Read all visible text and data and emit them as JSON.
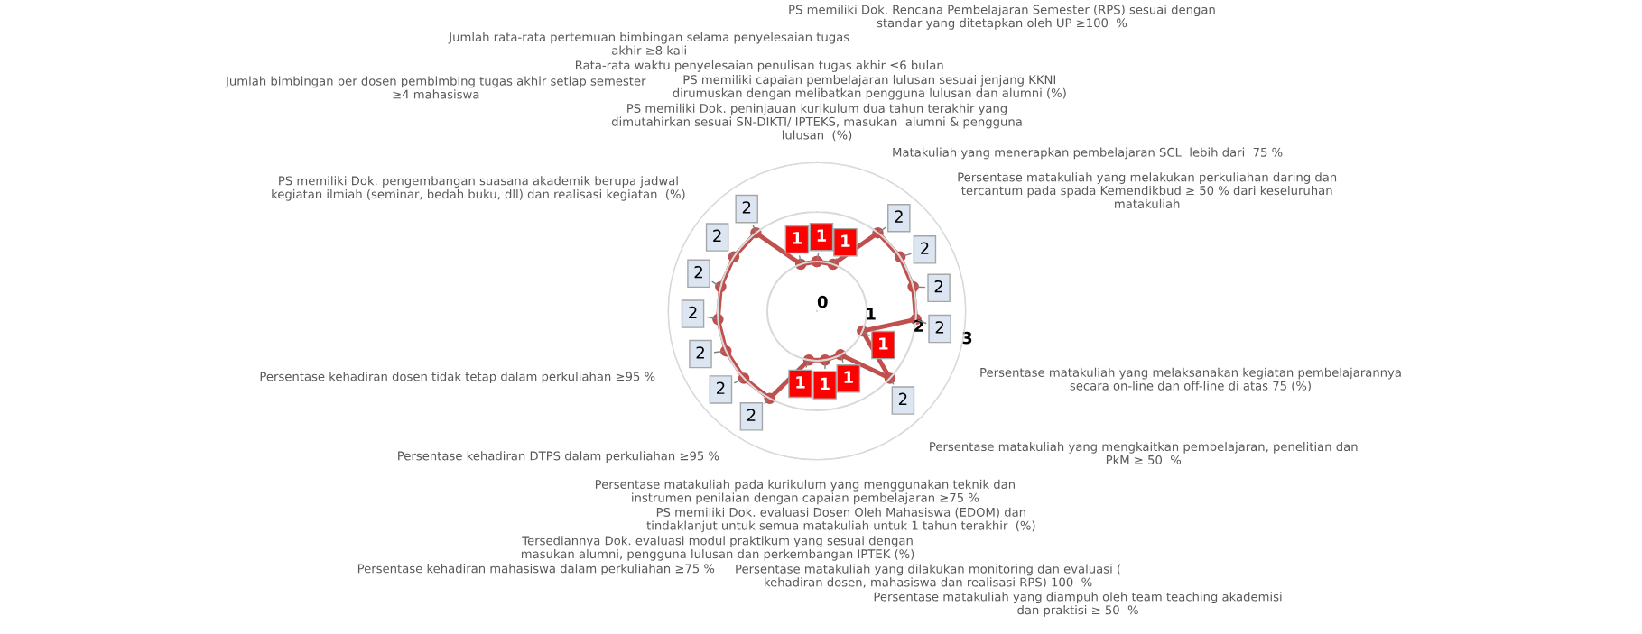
{
  "chart_data": {
    "type": "radar",
    "categories": [
      "PS memiliki Dok. peninjauan kurikulum dua tahun terakhir yang\ndimutahirkan sesuai SN-DIKTI/ IPTEKS, masukan  alumni & pengguna\nlulusan  (%)",
      "PS memiliki capaian pembelajaran lulusan sesuai jenjang KKNI\ndirumuskan dengan melibatkan pengguna lulusan dan alumni (%)",
      "PS memiliki Dok. Rencana Pembelajaran Semester (RPS) sesuai dengan\nstandar yang ditetapkan oleh UP ≥100  %",
      "Matakuliah yang menerapkan pembelajaran SCL  lebih dari  75 %",
      "Persentase matakuliah yang melakukan perkuliahan daring dan\ntercantum pada spada Kemendikbud ≥ 50 % dari keseluruhan\nmatakuliah",
      "Persentase matakuliah yang melaksanakan kegiatan pembelajarannya\nsecara on-line dan off-line di atas 75 (%)",
      "Persentase matakuliah yang mengkaitkan pembelajaran, penelitian dan\nPkM ≥ 50  %",
      "Persentase matakuliah yang diampuh oleh team teaching akademisi\ndan praktisi ≥ 50  %",
      "Persentase matakuliah yang dilakukan monitoring dan evaluasi (\nkehadiran dosen, mahasiswa dan realisasi RPS) 100  %",
      "PS memiliki Dok. evaluasi Dosen Oleh Mahasiswa (EDOM) dan\ntindaklanjut untuk semua matakuliah untuk 1 tahun terakhir  (%)",
      "Persentase matakuliah pada kurikulum yang menggunakan teknik dan\ninstrumen penilaian dengan capaian pembelajaran ≥75 %",
      "Tersediannya Dok. evaluasi modul praktikum yang sesuai dengan\nmasukan alumni, pengguna lulusan dan perkembangan IPTEK (%)",
      "Persentase kehadiran mahasiswa dalam perkuliahan ≥75 %",
      "Persentase kehadiran DTPS dalam perkuliahan ≥95 %",
      "Persentase kehadiran dosen tidak tetap dalam perkuliahan ≥95 %",
      "PS memiliki Dok. pengembangan suasana akademik berupa jadwal\nkegiatan ilmiah (seminar, bedah buku, dll) dan realisasi kegiatan  (%)",
      "Jumlah bimbingan per dosen pembimbing tugas akhir setiap semester\n≥4 mahasiswa",
      "Jumlah rata-rata pertemuan bimbingan selama penyelesaian tugas\nakhir ≥8 kali",
      "Rata-rata waktu penyelesaian penulisan tugas akhir ≤6 bulan"
    ],
    "series": [
      {
        "color": "#c0504d",
        "values": [
          1,
          1,
          2,
          2,
          2,
          2,
          1,
          2,
          1,
          1,
          1,
          2,
          2,
          2,
          2,
          2,
          2,
          2,
          1
        ]
      }
    ],
    "ylim": [
      0,
      3
    ],
    "yticks": [
      0,
      1,
      2,
      3
    ],
    "grid": "y",
    "marker": "circle",
    "data_labels": true
  }
}
